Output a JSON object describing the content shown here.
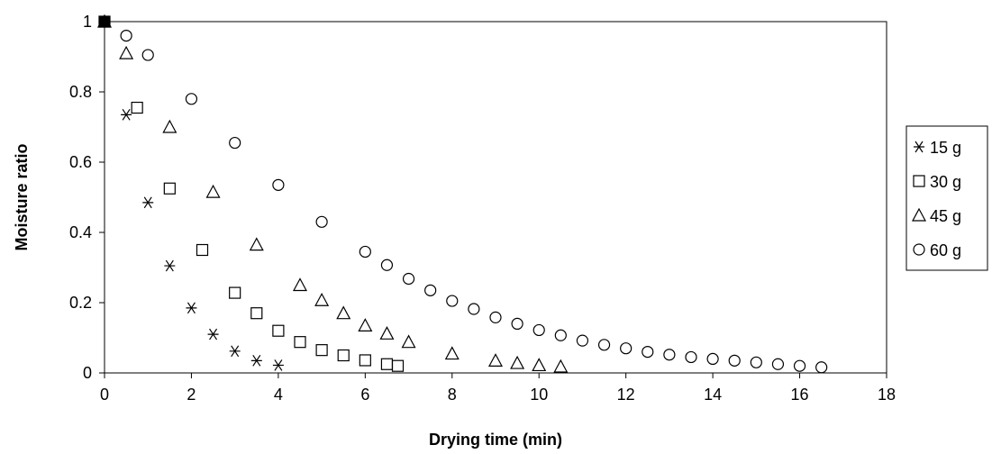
{
  "chart_data": {
    "type": "scatter",
    "title": "",
    "xlabel": "Drying time (min)",
    "ylabel": "Moisture ratio",
    "xlim": [
      0,
      18
    ],
    "ylim": [
      0,
      1
    ],
    "x_ticks": [
      0,
      2,
      4,
      6,
      8,
      10,
      12,
      14,
      16,
      18
    ],
    "y_ticks": [
      0,
      0.2,
      0.4,
      0.6,
      0.8,
      1
    ],
    "y_tick_labels": [
      "0",
      "0.2",
      "0.4",
      "0.6",
      "0.8",
      "1"
    ],
    "grid": false,
    "legend_position": "right",
    "series": [
      {
        "name": "15 g",
        "marker": "asterisk",
        "x": [
          0,
          0.5,
          1,
          1.5,
          2,
          2.5,
          3,
          3.5,
          4
        ],
        "y": [
          1,
          0.735,
          0.485,
          0.305,
          0.185,
          0.11,
          0.062,
          0.035,
          0.022
        ]
      },
      {
        "name": "30 g",
        "marker": "square",
        "x": [
          0,
          0.75,
          1.5,
          2.25,
          3,
          3.5,
          4,
          4.5,
          5,
          5.5,
          6,
          6.5,
          6.75
        ],
        "y": [
          1,
          0.755,
          0.525,
          0.35,
          0.228,
          0.17,
          0.12,
          0.088,
          0.065,
          0.05,
          0.036,
          0.025,
          0.02
        ]
      },
      {
        "name": "45 g",
        "marker": "triangle",
        "x": [
          0,
          0.5,
          1.5,
          2.5,
          3.5,
          4.5,
          5,
          5.5,
          6,
          6.5,
          7,
          8,
          9,
          9.5,
          10,
          10.5
        ],
        "y": [
          1,
          0.91,
          0.7,
          0.515,
          0.365,
          0.25,
          0.207,
          0.17,
          0.135,
          0.112,
          0.088,
          0.055,
          0.035,
          0.028,
          0.022,
          0.018
        ]
      },
      {
        "name": "60 g",
        "marker": "circle",
        "x": [
          0,
          0.5,
          1,
          2,
          3,
          4,
          5,
          6,
          6.5,
          7,
          7.5,
          8,
          8.5,
          9,
          9.5,
          10,
          10.5,
          11,
          11.5,
          12,
          12.5,
          13,
          13.5,
          14,
          14.5,
          15,
          15.5,
          16,
          16.5
        ],
        "y": [
          1,
          0.96,
          0.905,
          0.78,
          0.655,
          0.535,
          0.43,
          0.345,
          0.307,
          0.268,
          0.235,
          0.205,
          0.182,
          0.158,
          0.14,
          0.122,
          0.107,
          0.092,
          0.08,
          0.07,
          0.06,
          0.052,
          0.045,
          0.04,
          0.035,
          0.03,
          0.025,
          0.02,
          0.016
        ]
      }
    ]
  }
}
